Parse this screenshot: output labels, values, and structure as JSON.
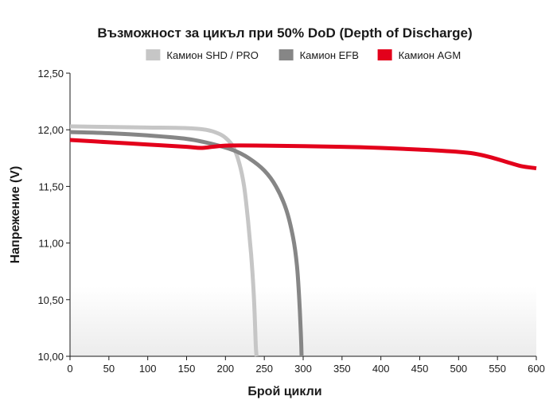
{
  "chart_data": {
    "type": "line",
    "title": "Възможност за цикъл при 50% DoD (Depth of Discharge)",
    "xlabel": "Брой цикли",
    "ylabel": "Напрежение (V)",
    "xlim": [
      0,
      600
    ],
    "ylim": [
      10.0,
      12.5
    ],
    "x_ticks": [
      "0",
      "50",
      "100",
      "150",
      "200",
      "250",
      "300",
      "350",
      "400",
      "450",
      "500",
      "550",
      "600"
    ],
    "y_ticks": [
      "10,00",
      "10,50",
      "11,00",
      "11,50",
      "12,00",
      "12,50"
    ],
    "legend_position": "top",
    "grid": false,
    "series": [
      {
        "name": "Камион SHD / PRO",
        "color": "#c6c6c6",
        "points": [
          [
            0,
            12.03
          ],
          [
            50,
            12.025
          ],
          [
            100,
            12.02
          ],
          [
            150,
            12.015
          ],
          [
            175,
            12.0
          ],
          [
            190,
            11.97
          ],
          [
            200,
            11.93
          ],
          [
            210,
            11.85
          ],
          [
            218,
            11.7
          ],
          [
            224,
            11.5
          ],
          [
            229,
            11.2
          ],
          [
            233,
            10.9
          ],
          [
            236,
            10.6
          ],
          [
            238,
            10.3
          ],
          [
            239,
            10.1
          ],
          [
            240,
            10.0
          ]
        ]
      },
      {
        "name": "Камион EFB",
        "color": "#868686",
        "points": [
          [
            0,
            11.98
          ],
          [
            50,
            11.97
          ],
          [
            100,
            11.95
          ],
          [
            150,
            11.92
          ],
          [
            180,
            11.88
          ],
          [
            210,
            11.82
          ],
          [
            230,
            11.75
          ],
          [
            250,
            11.64
          ],
          [
            265,
            11.5
          ],
          [
            278,
            11.3
          ],
          [
            287,
            11.05
          ],
          [
            292,
            10.8
          ],
          [
            295,
            10.5
          ],
          [
            297,
            10.2
          ],
          [
            298,
            10.0
          ]
        ]
      },
      {
        "name": "Камион AGM",
        "color": "#e3001b",
        "points": [
          [
            0,
            11.91
          ],
          [
            50,
            11.89
          ],
          [
            100,
            11.87
          ],
          [
            150,
            11.85
          ],
          [
            170,
            11.84
          ],
          [
            200,
            11.86
          ],
          [
            250,
            11.86
          ],
          [
            300,
            11.855
          ],
          [
            350,
            11.85
          ],
          [
            400,
            11.84
          ],
          [
            450,
            11.825
          ],
          [
            500,
            11.805
          ],
          [
            520,
            11.79
          ],
          [
            540,
            11.76
          ],
          [
            560,
            11.72
          ],
          [
            580,
            11.68
          ],
          [
            600,
            11.66
          ]
        ]
      }
    ]
  }
}
